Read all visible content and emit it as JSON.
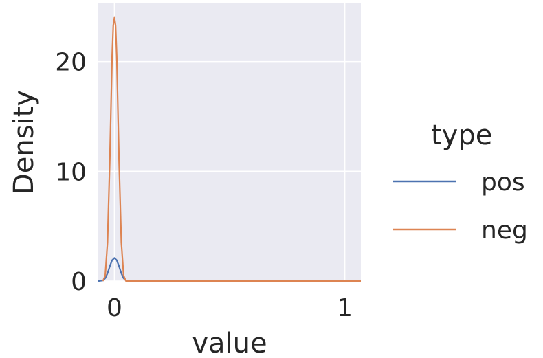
{
  "chart_data": {
    "type": "line",
    "chart_kind": "kde",
    "xlabel": "value",
    "ylabel": "Density",
    "xlim": [
      -0.07,
      1.07
    ],
    "ylim": [
      0,
      25.3
    ],
    "xticks": [
      0,
      1
    ],
    "yticks": [
      0,
      10,
      20
    ],
    "grid": true,
    "background_color": "#EAEAF2",
    "grid_color": "#FFFFFF",
    "legend": {
      "title": "type",
      "placement": "right-outside"
    },
    "series": [
      {
        "name": "pos",
        "color": "#4C72B0",
        "x": [
          -0.07,
          -0.05,
          -0.04,
          -0.03,
          -0.02,
          -0.01,
          0.0,
          0.01,
          0.02,
          0.03,
          0.04,
          0.05,
          0.08,
          0.2,
          0.4,
          0.6,
          0.8,
          0.98,
          1.0,
          1.02,
          1.07
        ],
        "y": [
          0,
          0.05,
          0.25,
          0.7,
          1.35,
          1.9,
          2.1,
          1.9,
          1.35,
          0.7,
          0.25,
          0.05,
          0,
          0,
          0,
          0,
          0,
          0.01,
          0.02,
          0.01,
          0
        ]
      },
      {
        "name": "neg",
        "color": "#DD8452",
        "x": [
          -0.05,
          -0.04,
          -0.03,
          -0.02,
          -0.01,
          -0.005,
          0.0,
          0.005,
          0.01,
          0.02,
          0.03,
          0.04,
          0.05,
          0.08,
          0.2,
          0.4,
          0.6,
          0.8,
          1.0,
          1.07
        ],
        "y": [
          0,
          0.5,
          3.5,
          11,
          20.5,
          23.3,
          24,
          23.3,
          20.5,
          11,
          3.5,
          0.5,
          0,
          0,
          0,
          0,
          0,
          0,
          0,
          0
        ]
      }
    ]
  }
}
